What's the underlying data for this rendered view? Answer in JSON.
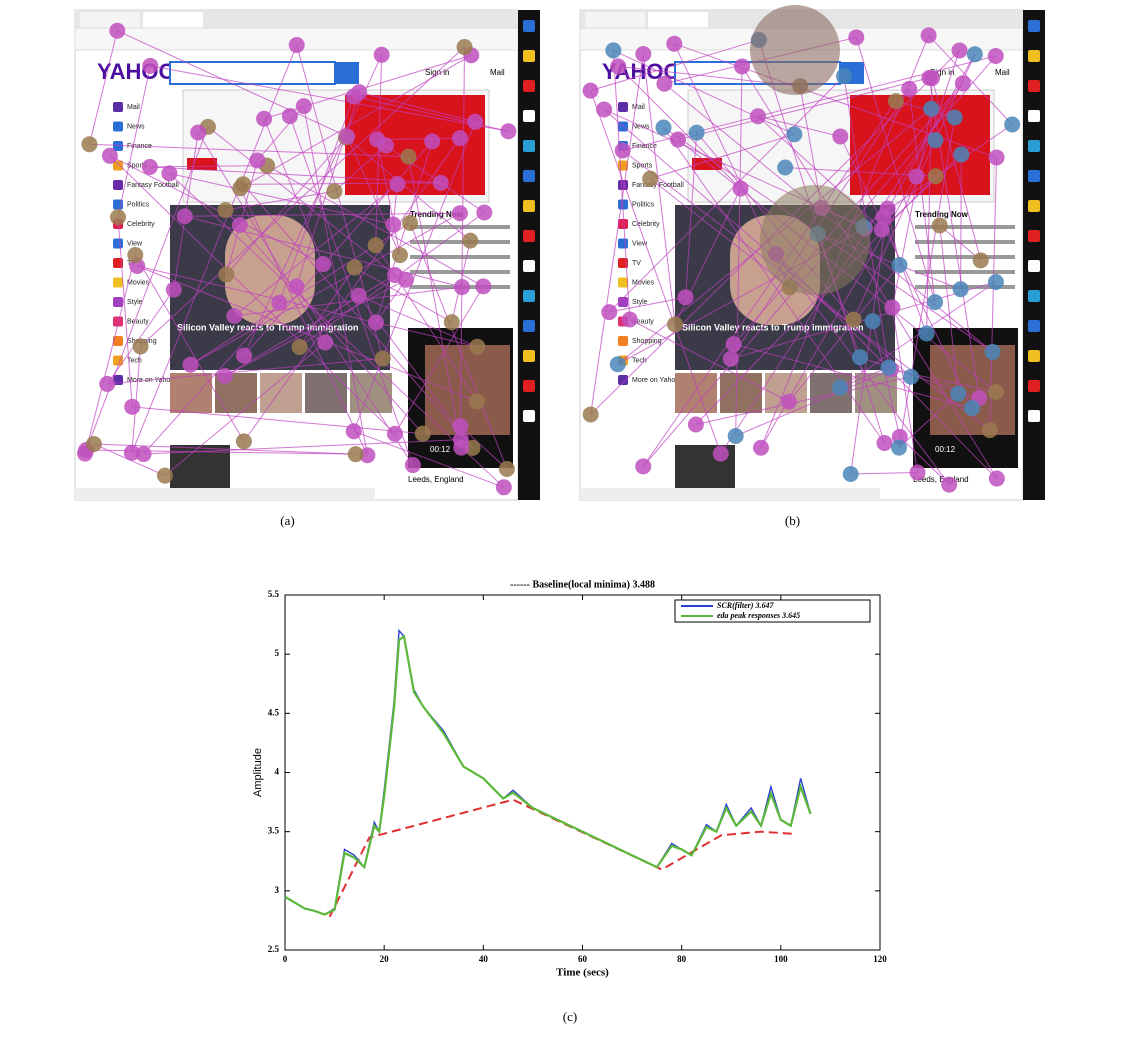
{
  "panels": [
    {
      "label": "(a)"
    },
    {
      "label": "(b)"
    }
  ],
  "screenshot": {
    "logo": "YAHOO!",
    "sign_in": "Sign in",
    "mail": "Mail",
    "menu": [
      "Mail",
      "News",
      "Finance",
      "Sports",
      "Fantasy Football",
      "Politics",
      "Celebrity",
      "View",
      "TV",
      "Movies",
      "Style",
      "Beauty",
      "Shopping",
      "Tech",
      "More on Yahoo"
    ],
    "trending_title": "Trending Now",
    "headline": "Silicon Valley reacts to Trump immigration",
    "location": "Leeds, England",
    "video_time": "00:12"
  },
  "chart_label": "(c)",
  "chart_data": {
    "type": "line",
    "title": "------ Baseline(local minima) 3.488",
    "xlabel": "Time (secs)",
    "ylabel": "Amplitude",
    "xlim": [
      0,
      120
    ],
    "xticks": [
      0,
      20,
      40,
      60,
      80,
      100,
      120
    ],
    "ylim": [
      2.5,
      5.5
    ],
    "yticks": [
      2.5,
      3,
      3.5,
      4,
      4.5,
      5,
      5.5
    ],
    "series": [
      {
        "name": "SCR(filter) 3.647",
        "color": "#2a3fd0",
        "x": [
          0,
          2,
          4,
          6,
          8,
          10,
          12,
          14,
          16,
          18,
          19,
          20,
          22,
          23,
          24,
          26,
          28,
          32,
          36,
          40,
          44,
          46,
          50,
          55,
          60,
          65,
          70,
          75,
          78,
          80,
          82,
          85,
          87,
          89,
          91,
          94,
          96,
          98,
          100,
          102,
          104,
          106
        ],
        "values": [
          2.95,
          2.9,
          2.85,
          2.83,
          2.8,
          2.85,
          3.35,
          3.3,
          3.2,
          3.58,
          3.5,
          3.85,
          4.6,
          5.2,
          5.15,
          4.7,
          4.55,
          4.35,
          4.05,
          3.95,
          3.78,
          3.85,
          3.7,
          3.6,
          3.5,
          3.4,
          3.3,
          3.2,
          3.4,
          3.35,
          3.3,
          3.56,
          3.5,
          3.73,
          3.55,
          3.7,
          3.55,
          3.88,
          3.6,
          3.55,
          3.95,
          3.65
        ]
      },
      {
        "name": "eda peak responses 3.645",
        "color": "#5cb83a",
        "x": [
          0,
          2,
          4,
          6,
          8,
          10,
          12,
          14,
          16,
          18,
          19,
          20,
          22,
          23,
          24,
          26,
          28,
          32,
          36,
          40,
          44,
          46,
          50,
          55,
          60,
          65,
          70,
          75,
          78,
          80,
          82,
          85,
          87,
          89,
          91,
          94,
          96,
          98,
          100,
          102,
          104,
          106
        ],
        "values": [
          2.95,
          2.9,
          2.85,
          2.83,
          2.8,
          2.84,
          3.32,
          3.28,
          3.2,
          3.55,
          3.5,
          3.8,
          4.55,
          5.12,
          5.15,
          4.68,
          4.55,
          4.33,
          4.05,
          3.95,
          3.78,
          3.83,
          3.7,
          3.6,
          3.5,
          3.4,
          3.3,
          3.2,
          3.38,
          3.35,
          3.3,
          3.54,
          3.5,
          3.7,
          3.55,
          3.67,
          3.55,
          3.82,
          3.6,
          3.55,
          3.88,
          3.65
        ]
      }
    ],
    "baseline": {
      "color": "#e03030",
      "x": [
        9,
        17,
        46,
        76,
        88,
        96,
        103
      ],
      "values": [
        2.78,
        3.45,
        3.77,
        3.18,
        3.47,
        3.5,
        3.48
      ]
    },
    "legend": "upper right"
  }
}
